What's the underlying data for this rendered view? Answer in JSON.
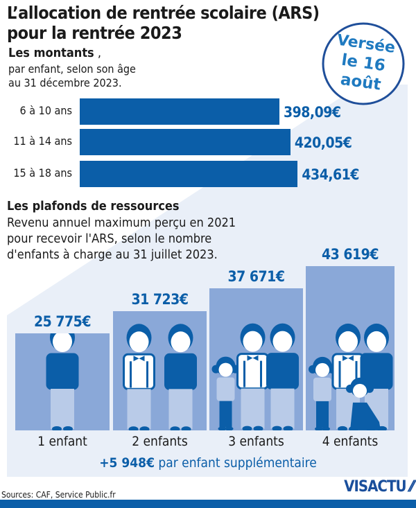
{
  "title_line1": "L’allocation de rentrée scolaire (ARS)",
  "title_line2": "pour la rentrée 2023",
  "stamp": {
    "line1": "Versée",
    "line2": "le 16",
    "line3": "août",
    "color": "#1f4f9a"
  },
  "amounts": {
    "heading": "Les montants",
    "heading_suffix": " ,",
    "desc1": "par enfant, selon son âge",
    "desc2": "au 31 décembre 2023."
  },
  "ceilings": {
    "heading": "Les plafonds de ressources",
    "desc1": "Revenu annuel maximum perçu en 2021",
    "desc2": "pour recevoir l'ARS, selon le nombre",
    "desc3": "d'enfants à charge au 31 juillet 2023."
  },
  "extra": {
    "amount": "+5 948€",
    "text": " par enfant supplémentaire"
  },
  "source": "Sources: CAF, Service Public.fr",
  "logo": "VISACTU",
  "colors": {
    "bar": "#0b5ea8",
    "column": "#8aa8d8",
    "panel": "#e9eff8",
    "figure_dark": "#0b5ea8",
    "figure_light": "#b9cbe8"
  },
  "chart_data": [
    {
      "type": "bar",
      "orientation": "horizontal",
      "categories": [
        "6 à 10 ans",
        "11 à 14 ans",
        "15 à 18 ans"
      ],
      "values": [
        398.09,
        420.05,
        434.61
      ],
      "labels": [
        "398,09€",
        "420,05€",
        "434,61€"
      ],
      "unit": "€"
    },
    {
      "type": "bar",
      "orientation": "vertical",
      "categories": [
        "1 enfant",
        "2 enfants",
        "3 enfants",
        "4 enfants"
      ],
      "values": [
        25775,
        31723,
        37671,
        43619
      ],
      "labels": [
        "25 775€",
        "31 723€",
        "37 671€",
        "43 619€"
      ],
      "unit": "€",
      "figures": [
        1,
        2,
        3,
        4
      ]
    }
  ]
}
